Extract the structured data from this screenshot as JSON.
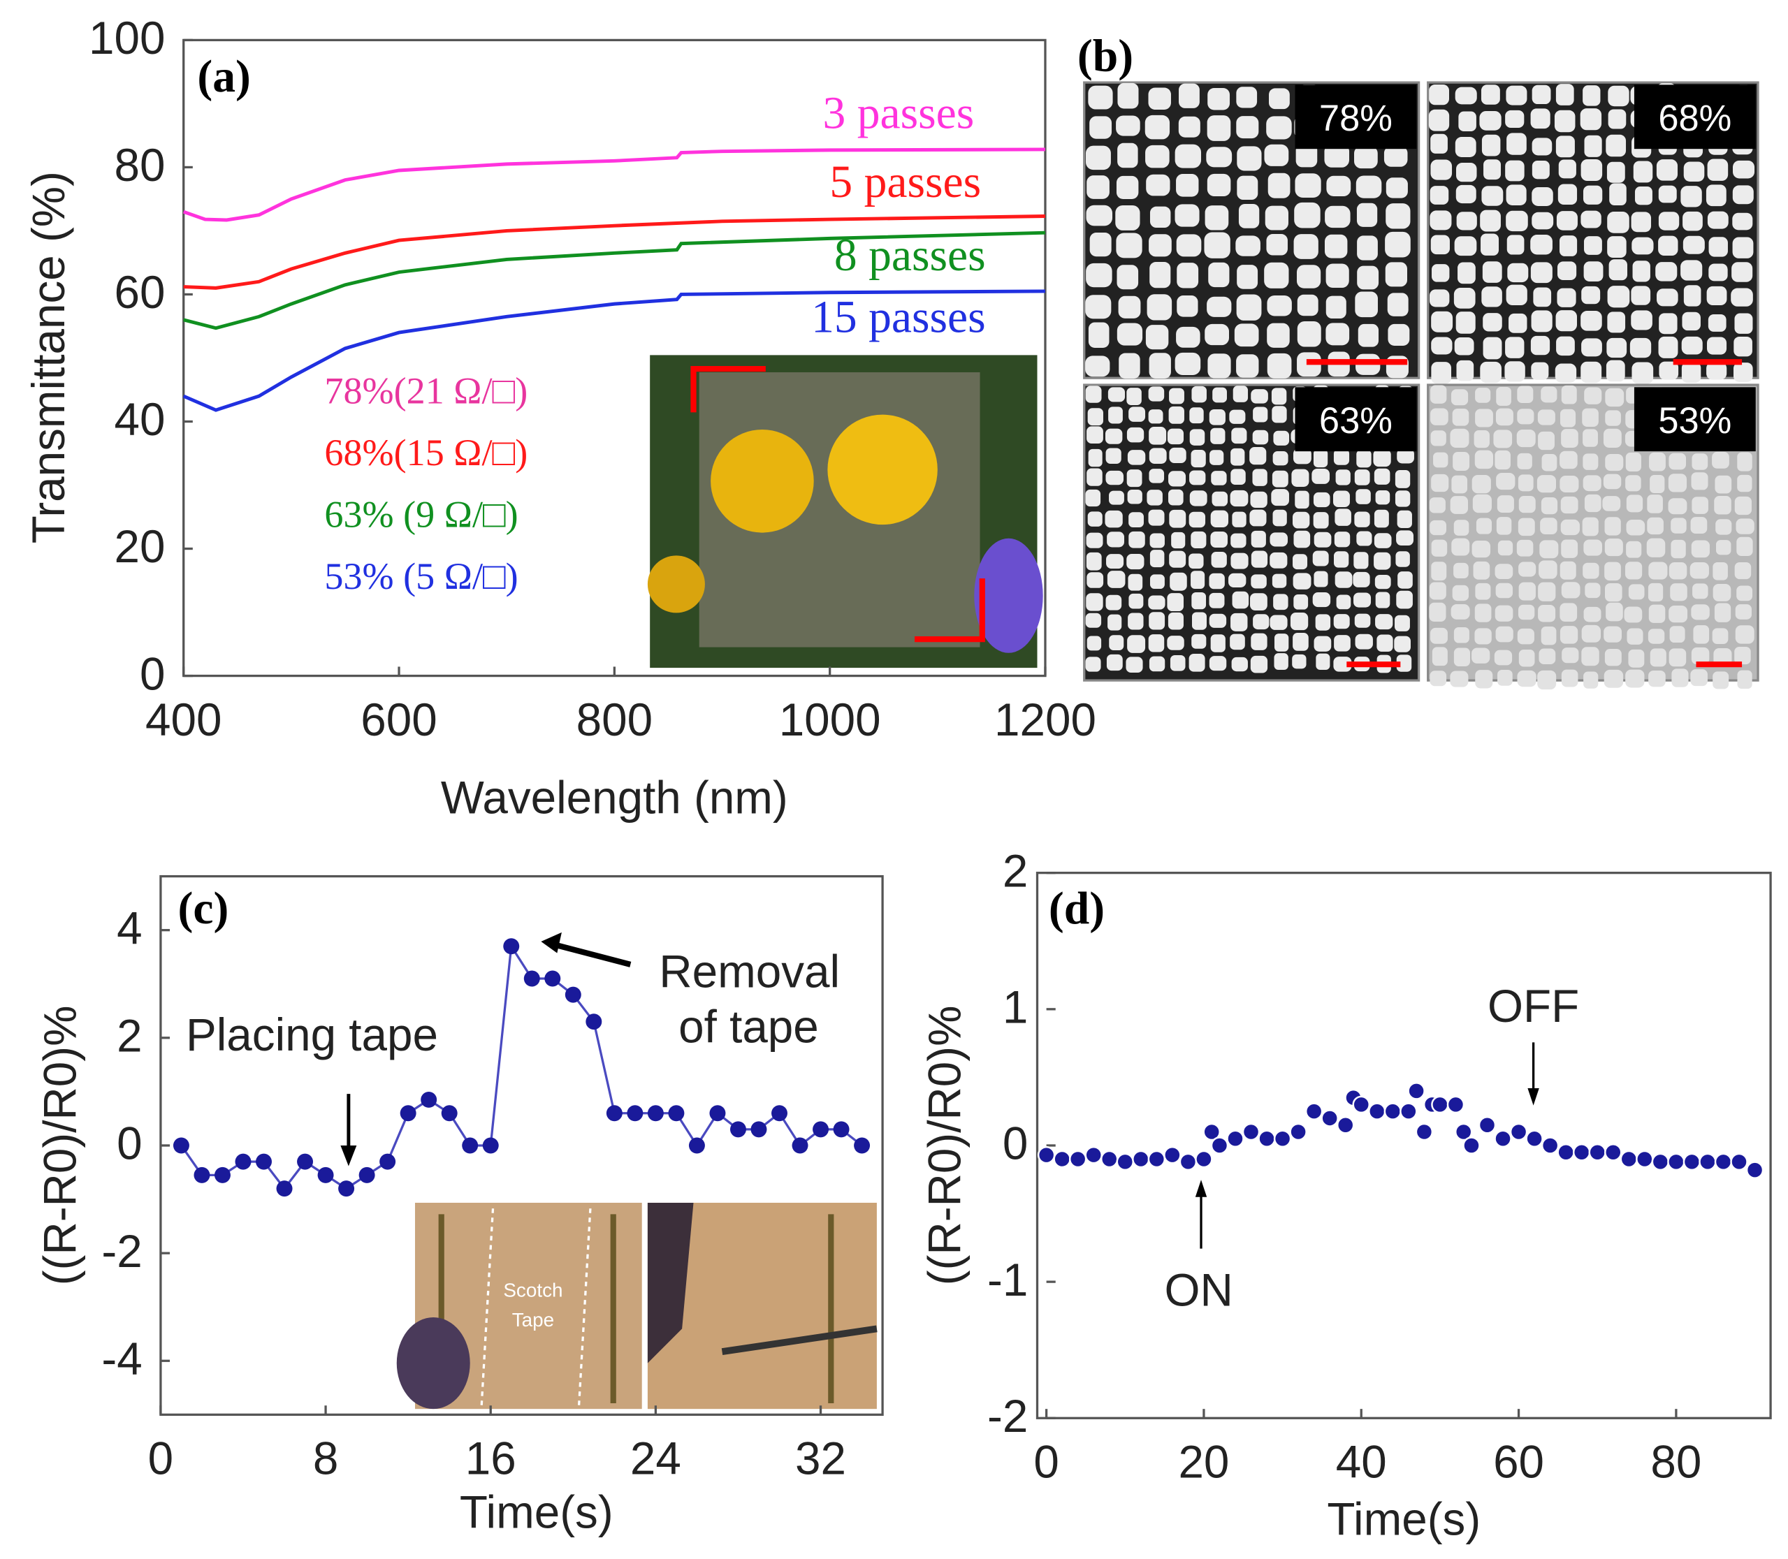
{
  "chart_data": [
    {
      "panel": "(a)",
      "type": "line",
      "xlabel": "Wavelength (nm)",
      "ylabel": "Transmittance (%)",
      "xlim": [
        400,
        1200
      ],
      "ylim": [
        0,
        100
      ],
      "xticks": [
        "400",
        "600",
        "800",
        "1000",
        "1200"
      ],
      "yticks": [
        "0",
        "20",
        "40",
        "60",
        "80",
        "100"
      ],
      "series": [
        {
          "name": "3 passes",
          "color": "#ff33dd",
          "points": [
            [
              400,
              73
            ],
            [
              420,
              71.8
            ],
            [
              440,
              71.7
            ],
            [
              470,
              72.5
            ],
            [
              500,
              75
            ],
            [
              550,
              78
            ],
            [
              600,
              79.5
            ],
            [
              700,
              80.5
            ],
            [
              800,
              81
            ],
            [
              858,
              81.5
            ],
            [
              862,
              82.3
            ],
            [
              900,
              82.5
            ],
            [
              1000,
              82.7
            ],
            [
              1200,
              82.8
            ]
          ]
        },
        {
          "name": "5 passes",
          "color": "#ff1a1a",
          "points": [
            [
              400,
              61.2
            ],
            [
              430,
              61
            ],
            [
              470,
              62
            ],
            [
              500,
              64
            ],
            [
              550,
              66.5
            ],
            [
              600,
              68.5
            ],
            [
              700,
              70
            ],
            [
              800,
              70.8
            ],
            [
              900,
              71.5
            ],
            [
              1000,
              71.8
            ],
            [
              1200,
              72.3
            ]
          ]
        },
        {
          "name": "8 passes",
          "color": "#109020",
          "points": [
            [
              400,
              56
            ],
            [
              430,
              54.7
            ],
            [
              470,
              56.5
            ],
            [
              500,
              58.5
            ],
            [
              550,
              61.5
            ],
            [
              600,
              63.5
            ],
            [
              700,
              65.5
            ],
            [
              800,
              66.5
            ],
            [
              858,
              67
            ],
            [
              862,
              68
            ],
            [
              1000,
              68.8
            ],
            [
              1200,
              69.7
            ]
          ]
        },
        {
          "name": "15 passes",
          "color": "#2030e0",
          "points": [
            [
              400,
              44
            ],
            [
              430,
              41.8
            ],
            [
              470,
              44
            ],
            [
              500,
              47
            ],
            [
              550,
              51.5
            ],
            [
              600,
              54
            ],
            [
              700,
              56.5
            ],
            [
              800,
              58.5
            ],
            [
              858,
              59.2
            ],
            [
              862,
              60
            ],
            [
              1000,
              60.3
            ],
            [
              1200,
              60.5
            ]
          ]
        }
      ],
      "annotations": [
        {
          "text": "78%(21 Ω/□)",
          "color": "#e8359e"
        },
        {
          "text": "68%(15 Ω/□)",
          "color": "#ff1a1a"
        },
        {
          "text": "63% (9 Ω/□)",
          "color": "#109020"
        },
        {
          "text": "53% (5 Ω/□)",
          "color": "#2030e0"
        }
      ]
    },
    {
      "panel": "(b)",
      "type": "image-grid",
      "labels": [
        "78%",
        "68%",
        "63%",
        "53%"
      ]
    },
    {
      "panel": "(c)",
      "type": "line",
      "xlabel": "Time(s)",
      "ylabel": "((R-R0)/R0)%",
      "xlim": [
        0,
        35
      ],
      "ylim": [
        -5,
        5
      ],
      "xticks": [
        "0",
        "8",
        "16",
        "24",
        "32"
      ],
      "yticks": [
        "-4",
        "-2",
        "0",
        "2",
        "4"
      ],
      "color": "#1a1a9a",
      "x": [
        1,
        2,
        3,
        4,
        5,
        6,
        7,
        8,
        9,
        10,
        11,
        12,
        13,
        14,
        15,
        16,
        17,
        18,
        19,
        20,
        21,
        22,
        23,
        24,
        25,
        26,
        27,
        28,
        29,
        30,
        31,
        32,
        33,
        34
      ],
      "y": [
        0,
        -0.55,
        -0.55,
        -0.3,
        -0.3,
        -0.8,
        -0.3,
        -0.55,
        -0.8,
        -0.55,
        -0.3,
        0.6,
        0.85,
        0.6,
        0,
        0,
        3.7,
        3.1,
        3.1,
        2.8,
        2.3,
        0.6,
        0.6,
        0.6,
        0.6,
        0,
        0.6,
        0.3,
        0.3,
        0.6,
        0,
        0.3,
        0.3,
        0
      ],
      "annotations": [
        "Placing tape",
        "Removal",
        "of tape"
      ],
      "inset_text": [
        "Scotch",
        "Tape"
      ]
    },
    {
      "panel": "(d)",
      "type": "scatter",
      "xlabel": "Time(s)",
      "ylabel": "((R-R0)/R0)%",
      "xlim": [
        0,
        92
      ],
      "ylim": [
        -2,
        2
      ],
      "xticks": [
        "0",
        "20",
        "40",
        "60",
        "80"
      ],
      "yticks": [
        "-2",
        "-1",
        "0",
        "1",
        "2"
      ],
      "color": "#1a1a9a",
      "x": [
        0,
        2,
        4,
        6,
        8,
        10,
        12,
        14,
        16,
        18,
        20,
        21,
        22,
        24,
        26,
        28,
        30,
        32,
        34,
        36,
        38,
        39,
        40,
        42,
        44,
        46,
        47,
        48,
        49,
        50,
        52,
        53,
        54,
        56,
        58,
        60,
        62,
        64,
        66,
        68,
        70,
        72,
        74,
        76,
        78,
        80,
        82,
        84,
        86,
        88,
        90
      ],
      "y": [
        -0.07,
        -0.1,
        -0.1,
        -0.07,
        -0.1,
        -0.12,
        -0.1,
        -0.1,
        -0.07,
        -0.12,
        -0.1,
        0.1,
        0,
        0.05,
        0.1,
        0.05,
        0.05,
        0.1,
        0.25,
        0.2,
        0.15,
        0.35,
        0.3,
        0.25,
        0.25,
        0.25,
        0.4,
        0.1,
        0.3,
        0.3,
        0.3,
        0.1,
        0,
        0.15,
        0.05,
        0.1,
        0.05,
        0,
        -0.05,
        -0.05,
        -0.05,
        -0.05,
        -0.1,
        -0.1,
        -0.12,
        -0.12,
        -0.12,
        -0.12,
        -0.12,
        -0.12,
        -0.18
      ],
      "annotations": [
        "ON",
        "OFF"
      ]
    }
  ]
}
